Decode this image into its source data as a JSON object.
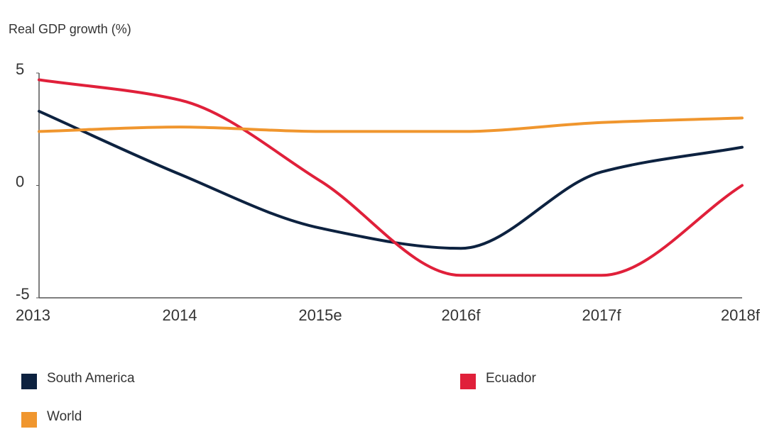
{
  "chart_data": {
    "type": "line",
    "y_label": "Real GDP growth (%)",
    "categories": [
      "2013",
      "2014",
      "2015e",
      "2016f",
      "2017f",
      "2018f"
    ],
    "series": [
      {
        "name": "South America",
        "color": "#0d2240",
        "values": [
          3.3,
          0.5,
          -1.9,
          -2.8,
          0.6,
          1.7
        ]
      },
      {
        "name": "Ecuador",
        "color": "#e0203a",
        "values": [
          4.7,
          3.8,
          0.2,
          -4.0,
          -4.0,
          0
        ]
      },
      {
        "name": "World",
        "color": "#f0962e",
        "values": [
          2.4,
          2.6,
          2.4,
          2.4,
          2.8,
          3.0
        ]
      }
    ],
    "ylim": [
      -5,
      5
    ],
    "yticks": [
      -5,
      0,
      5
    ],
    "grid": false
  }
}
